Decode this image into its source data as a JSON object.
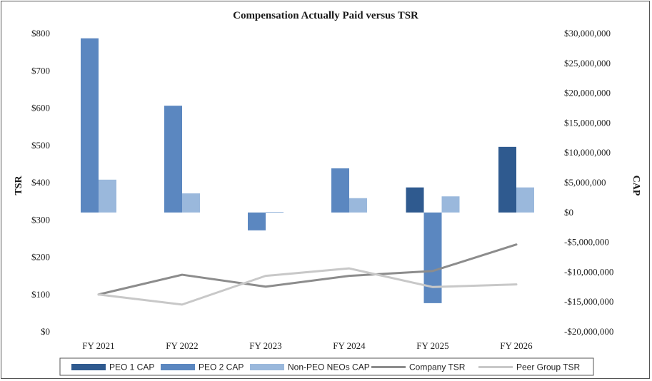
{
  "chart_data": {
    "type": "bar",
    "title": "Compensation Actually Paid versus TSR",
    "categories": [
      "FY 2021",
      "FY 2022",
      "FY 2023",
      "FY 2024",
      "FY 2025",
      "FY 2026"
    ],
    "left_axis": {
      "label": "TSR",
      "range": [
        0,
        800
      ],
      "ticks": [
        0,
        100,
        200,
        300,
        400,
        500,
        600,
        700,
        800
      ],
      "tick_labels": [
        "$0",
        "$100",
        "$200",
        "$300",
        "$400",
        "$500",
        "$600",
        "$700",
        "$800"
      ]
    },
    "right_axis": {
      "label": "CAP",
      "range": [
        -20000000,
        30000000
      ],
      "ticks": [
        -20000000,
        -15000000,
        -10000000,
        -5000000,
        0,
        5000000,
        10000000,
        15000000,
        20000000,
        25000000,
        30000000
      ],
      "tick_labels": [
        "-$20,000,000",
        "-$15,000,000",
        "-$10,000,000",
        "-$5,000,000",
        "$0",
        "$5,000,000",
        "$10,000,000",
        "$15,000,000",
        "$20,000,000",
        "$25,000,000",
        "$30,000,000"
      ]
    },
    "bar_series": [
      {
        "name": "PEO 1 CAP",
        "color": "#2f5a8f",
        "values": [
          null,
          null,
          null,
          null,
          4200000,
          11000000
        ]
      },
      {
        "name": "PEO 2 CAP",
        "color": "#5b87c0",
        "values": [
          29200000,
          17900000,
          -3000000,
          7400000,
          -15200000,
          null
        ]
      },
      {
        "name": "Non-PEO NEOs CAP",
        "color": "#9ab8dc",
        "values": [
          5500000,
          3200000,
          100000,
          2400000,
          2700000,
          4200000
        ]
      }
    ],
    "line_series": [
      {
        "name": "Company TSR",
        "color": "#8c8c8c",
        "values": [
          100,
          153,
          121,
          150,
          163,
          234
        ]
      },
      {
        "name": "Peer Group TSR",
        "color": "#c8c8c8",
        "values": [
          100,
          73,
          150,
          170,
          120,
          127
        ]
      }
    ],
    "legend_position": "bottom",
    "grid": false
  }
}
